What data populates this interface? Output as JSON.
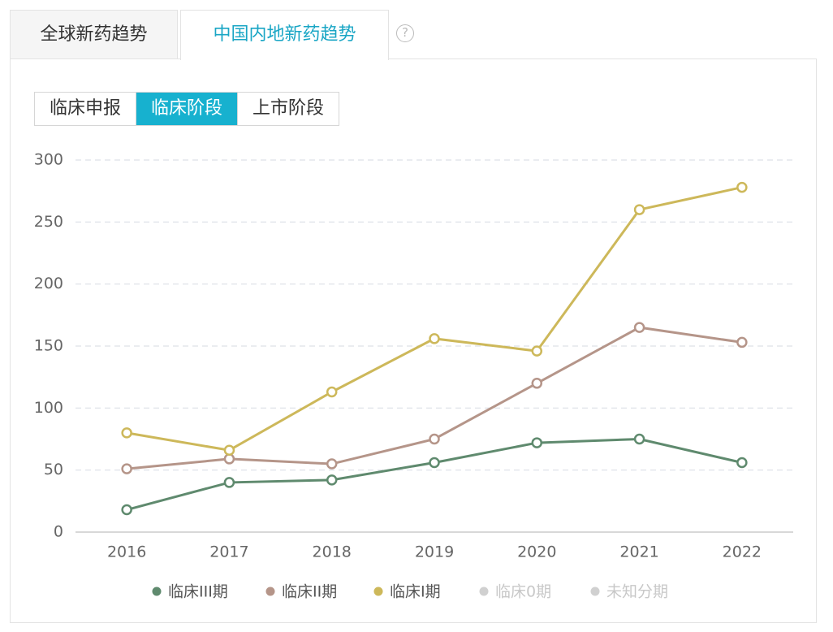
{
  "tabs": {
    "items": [
      "全球新药趋势",
      "中国内地新药趋势"
    ],
    "active": 1
  },
  "buttons": {
    "items": [
      "临床申报",
      "临床阶段",
      "上市阶段"
    ],
    "active": 1
  },
  "chart_data": {
    "type": "line",
    "categories": [
      "2016",
      "2017",
      "2018",
      "2019",
      "2020",
      "2021",
      "2022"
    ],
    "series": [
      {
        "name": "临床III期",
        "color": "#5f8a6e",
        "values": [
          18,
          40,
          42,
          56,
          72,
          75,
          56
        ]
      },
      {
        "name": "临床II期",
        "color": "#b59589",
        "values": [
          51,
          59,
          55,
          75,
          120,
          165,
          153
        ]
      },
      {
        "name": "临床I期",
        "color": "#cdb85a",
        "values": [
          80,
          66,
          113,
          156,
          146,
          260,
          278
        ]
      }
    ],
    "inactive_series": [
      {
        "name": "临床0期",
        "color": "#d0d0d0"
      },
      {
        "name": "未知分期",
        "color": "#d0d0d0"
      }
    ],
    "ylim": [
      0,
      300
    ],
    "yticks": [
      0,
      50,
      100,
      150,
      200,
      250,
      300
    ],
    "grid": true
  }
}
